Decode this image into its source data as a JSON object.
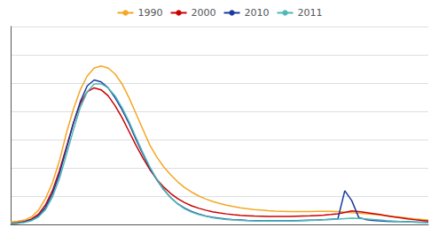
{
  "chart_data": {
    "type": "line",
    "x": [
      15,
      16,
      17,
      18,
      19,
      20,
      21,
      22,
      23,
      24,
      25,
      26,
      27,
      28,
      29,
      30,
      31,
      32,
      33,
      34,
      35,
      36,
      37,
      38,
      39,
      40,
      41,
      42,
      43,
      44,
      45,
      46,
      47,
      48,
      49,
      50,
      51,
      52,
      53,
      54,
      55,
      56,
      57,
      58,
      59,
      60,
      61,
      62,
      63,
      64,
      65,
      66,
      67,
      68,
      69,
      70,
      71,
      72,
      73,
      74,
      75
    ],
    "series": [
      {
        "name": "1990",
        "color": "#f5a623",
        "values": [
          0.012,
          0.016,
          0.022,
          0.038,
          0.072,
          0.13,
          0.21,
          0.32,
          0.46,
          0.58,
          0.68,
          0.75,
          0.79,
          0.8,
          0.79,
          0.76,
          0.71,
          0.64,
          0.56,
          0.48,
          0.4,
          0.34,
          0.29,
          0.25,
          0.215,
          0.186,
          0.163,
          0.144,
          0.129,
          0.116,
          0.106,
          0.097,
          0.09,
          0.084,
          0.079,
          0.075,
          0.072,
          0.069,
          0.067,
          0.066,
          0.065,
          0.065,
          0.065,
          0.065,
          0.066,
          0.066,
          0.066,
          0.065,
          0.062,
          0.059,
          0.057,
          0.054,
          0.051,
          0.048,
          0.044,
          0.04,
          0.036,
          0.032,
          0.028,
          0.025,
          0.022
        ]
      },
      {
        "name": "2000",
        "color": "#cc0000",
        "values": [
          0.006,
          0.009,
          0.015,
          0.027,
          0.052,
          0.098,
          0.17,
          0.27,
          0.39,
          0.51,
          0.61,
          0.67,
          0.69,
          0.68,
          0.65,
          0.6,
          0.54,
          0.47,
          0.4,
          0.335,
          0.277,
          0.228,
          0.188,
          0.156,
          0.13,
          0.11,
          0.094,
          0.082,
          0.072,
          0.064,
          0.058,
          0.053,
          0.049,
          0.046,
          0.044,
          0.042,
          0.041,
          0.04,
          0.04,
          0.04,
          0.04,
          0.041,
          0.042,
          0.043,
          0.045,
          0.047,
          0.05,
          0.054,
          0.06,
          0.068,
          0.065,
          0.06,
          0.055,
          0.05,
          0.044,
          0.038,
          0.033,
          0.028,
          0.024,
          0.02,
          0.017
        ]
      },
      {
        "name": "2010",
        "color": "#1a3a9c",
        "values": [
          0.004,
          0.007,
          0.012,
          0.022,
          0.044,
          0.085,
          0.155,
          0.255,
          0.38,
          0.51,
          0.62,
          0.7,
          0.73,
          0.72,
          0.69,
          0.64,
          0.58,
          0.51,
          0.43,
          0.355,
          0.285,
          0.225,
          0.175,
          0.135,
          0.104,
          0.082,
          0.065,
          0.053,
          0.043,
          0.036,
          0.031,
          0.027,
          0.024,
          0.022,
          0.02,
          0.019,
          0.018,
          0.018,
          0.018,
          0.018,
          0.018,
          0.019,
          0.02,
          0.021,
          0.022,
          0.024,
          0.026,
          0.028,
          0.17,
          0.12,
          0.035,
          0.025,
          0.02,
          0.018,
          0.016,
          0.015,
          0.014,
          0.013,
          0.012,
          0.011,
          0.01
        ]
      },
      {
        "name": "2011",
        "color": "#4db8b8",
        "values": [
          0.003,
          0.006,
          0.01,
          0.019,
          0.038,
          0.074,
          0.138,
          0.23,
          0.35,
          0.475,
          0.59,
          0.67,
          0.71,
          0.71,
          0.69,
          0.65,
          0.59,
          0.52,
          0.44,
          0.362,
          0.29,
          0.228,
          0.176,
          0.135,
          0.103,
          0.079,
          0.062,
          0.05,
          0.041,
          0.034,
          0.029,
          0.025,
          0.022,
          0.02,
          0.019,
          0.018,
          0.017,
          0.017,
          0.017,
          0.017,
          0.017,
          0.018,
          0.019,
          0.02,
          0.021,
          0.023,
          0.025,
          0.027,
          0.029,
          0.031,
          0.03,
          0.028,
          0.025,
          0.022,
          0.019,
          0.017,
          0.015,
          0.013,
          0.011,
          0.01,
          0.009
        ]
      }
    ],
    "xlim": [
      15,
      75
    ],
    "ylim": [
      0,
      1
    ],
    "yticks": [
      0,
      0.14285714285714285,
      0.2857142857142857,
      0.42857142857142855,
      0.5714285714285714,
      0.7142857142857142,
      0.8571428571428571,
      1
    ],
    "grid": "y",
    "legend": "top",
    "tick_labels": false
  }
}
